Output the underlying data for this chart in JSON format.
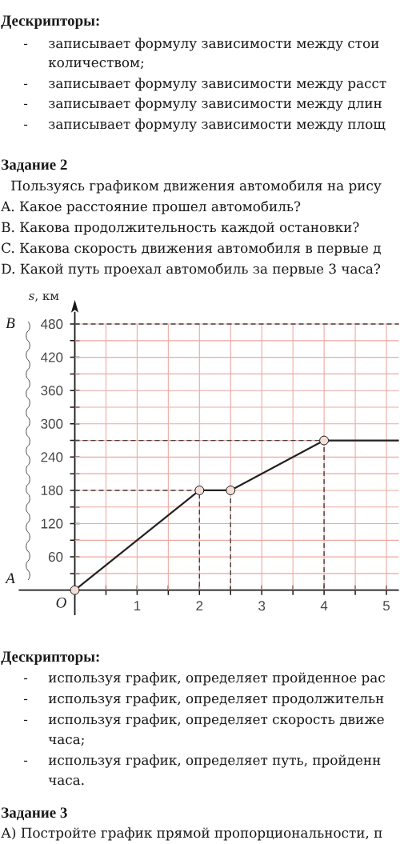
{
  "chart_data": {
    "type": "line",
    "title": "Задание 2",
    "subtitle": "Пользуясь графиком движения автомобиля на рису",
    "ylabel": "*s*, км",
    "xlim": [
      -0.9,
      5.2
    ],
    "ylim": [
      -45,
      502
    ],
    "xticks": [
      {
        "value": 0.5,
        "label": null
      },
      1,
      {
        "value": 1.5,
        "label": null
      },
      2,
      {
        "value": 2.5,
        "label": null
      },
      3,
      {
        "value": 3.5,
        "label": null
      },
      4,
      {
        "value": 4.5,
        "label": null
      },
      5
    ],
    "yticks": [
      {
        "value": 30,
        "label": null
      },
      60,
      {
        "value": 90,
        "label": null
      },
      120,
      {
        "value": 150,
        "label": null
      },
      180,
      {
        "value": 210,
        "label": null
      },
      240,
      {
        "value": 270,
        "label": null
      },
      300,
      {
        "value": 330,
        "label": null
      },
      360,
      {
        "value": 390,
        "label": null
      },
      420,
      {
        "value": 450,
        "label": null
      },
      480
    ],
    "grid": true,
    "series": [
      {
        "x": [
          0,
          2,
          2
        ],
        "values": [
          180,
          180,
          0
        ],
        "color": "#444444",
        "line_style": "dashed"
      },
      {
        "x": [
          2.5,
          2.5
        ],
        "values": [
          180,
          0
        ],
        "color": "#444444",
        "line_style": "dashed"
      },
      {
        "x": [
          0,
          4,
          4
        ],
        "values": [
          270,
          270,
          0
        ],
        "color": "#444444",
        "line_style": "dashed"
      },
      {
        "x": [
          0,
          2,
          2.5,
          4,
          5.2
        ],
        "values": [
          0,
          180,
          180,
          270,
          270
        ],
        "color": "#222222",
        "marker": "circle"
      }
    ],
    "ref_lines": [
      {
        "axis": "y",
        "value": 480,
        "color": "#444444",
        "line_style": "dashed"
      }
    ],
    "annotations": [
      "Дескрипторы:",
      "-",
      "записывает формулу зависимости между стои",
      "количеством;",
      "-",
      "записывает формулу зависимости между расст",
      "-",
      "записывает формулу зависимости между длин",
      "-",
      "записывает формулу зависимости между площ",
      "A. Какое расстояние прошел автомобиль?",
      "B. Какова продолжительность каждой остановки?",
      "C. Какова скорость движения автомобиля в первые д",
      "D. Какой путь проехал автомобиль за первые 3 часа?",
      "B",
      "A",
      {
        "text": "O",
        "x": 0,
        "y": 0
      },
      "Дескрипторы:",
      "-",
      "используя график, определяет пройденное рас",
      "-",
      "используя график, определяет продолжительн",
      "-",
      "используя график, определяет скорость движе",
      "часа;",
      "-",
      "используя график, определяет путь, пройденн",
      "часа.",
      "Задание 3",
      "А) Постройте график прямой пропорциональности, п"
    ]
  }
}
